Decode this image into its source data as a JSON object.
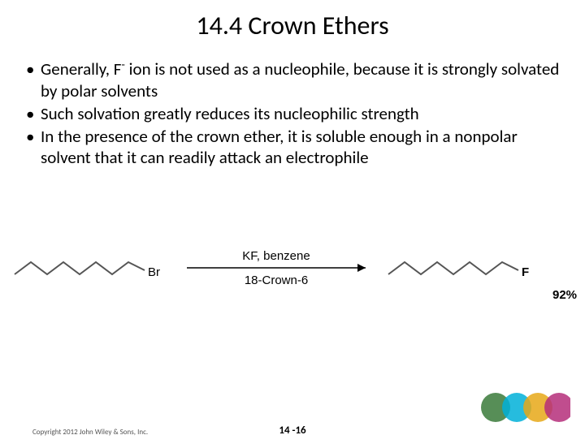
{
  "title": "14.4 Crown Ethers",
  "bullets": [
    {
      "pre": "Generally, F",
      "sup": "-",
      "post": " ion is not used as a nucleophile, because it is strongly solvated by polar solvents"
    },
    {
      "pre": "Such solvation greatly reduces its nucleophilic strength",
      "sup": "",
      "post": ""
    },
    {
      "pre": "In the presence of the crown ether, it is soluble enough in a nonpolar solvent that it can readily attack an electrophile",
      "sup": "",
      "post": ""
    }
  ],
  "reaction": {
    "reagent_top": "KF, benzene",
    "reagent_bottom": "18-Crown-6",
    "left_label": "Br",
    "right_label": "F",
    "yield": "92%",
    "chain_color": "#555555",
    "label_color": "#000000",
    "arrow_color": "#000000",
    "reagent_fontsize": 15,
    "label_fontsize": 15,
    "yield_fontsize": 15
  },
  "footer": {
    "copyright": "Copyright 2012 John Wiley & Sons, Inc.",
    "page": "14 -16"
  },
  "decor_circles": {
    "colors": [
      "#3a7a3a",
      "#00b0d8",
      "#e6a817",
      "#b52e7a"
    ],
    "radius": 18,
    "overlap": 10,
    "opacity": 0.85
  }
}
